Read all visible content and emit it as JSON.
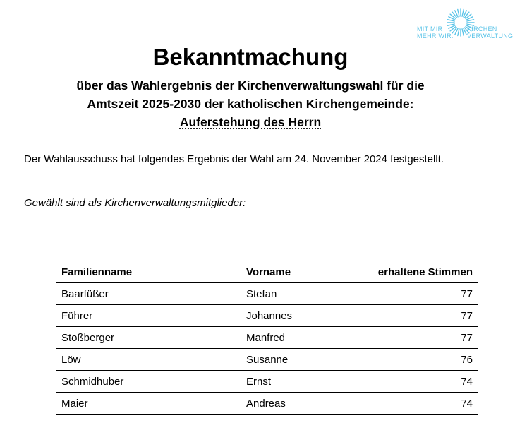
{
  "logo": {
    "left_line1": "MIT MIR",
    "left_line2": "MEHR WIR.",
    "right_line1": "KIRCHEN",
    "right_line2": "VERWALTUNG",
    "color": "#5bc4e8"
  },
  "title": "Bekanntmachung",
  "subtitle": {
    "line1": "über das Wahlergebnis der Kirchenverwaltungswahl für die",
    "line2": "Amtszeit 2025-2030 der katholischen Kirchengemeinde:",
    "parish": "Auferstehung des Herrn"
  },
  "statement": "Der Wahlausschuss hat folgendes Ergebnis der Wahl am 24. November 2024 festgestellt.",
  "intro": "Gewählt sind als Kirchenverwaltungsmitglieder:",
  "table": {
    "headers": {
      "last_name": "Familienname",
      "first_name": "Vorname",
      "votes": "erhaltene Stimmen"
    },
    "rows": [
      {
        "last_name": "Baarfüßer",
        "first_name": "Stefan",
        "votes": "77"
      },
      {
        "last_name": "Führer",
        "first_name": "Johannes",
        "votes": "77"
      },
      {
        "last_name": "Stoßberger",
        "first_name": "Manfred",
        "votes": "77"
      },
      {
        "last_name": "Löw",
        "first_name": "Susanne",
        "votes": "76"
      },
      {
        "last_name": "Schmidhuber",
        "first_name": "Ernst",
        "votes": "74"
      },
      {
        "last_name": "Maier",
        "first_name": "Andreas",
        "votes": "74"
      }
    ]
  }
}
